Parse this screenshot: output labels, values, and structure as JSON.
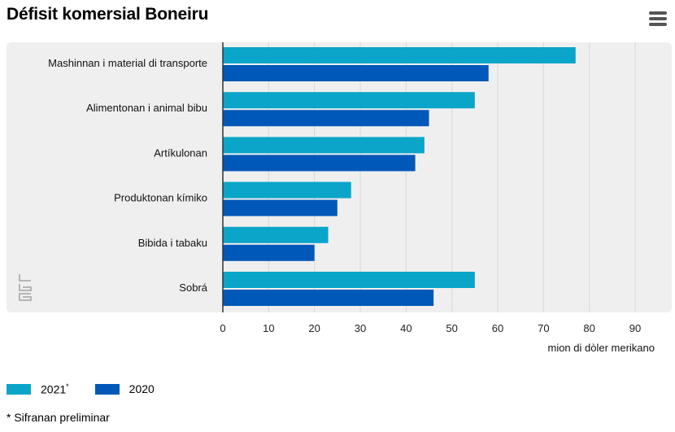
{
  "header": {
    "title": "Défisit komersial Boneiru",
    "menu_icon": "hamburger-menu-icon"
  },
  "colors": {
    "series_2021": "#0aa5c8",
    "series_2020": "#0058b8",
    "panel": "#efefef",
    "grid": "#d8d8d8",
    "axis": "#333333"
  },
  "chart_data": {
    "type": "bar",
    "orientation": "horizontal",
    "title": "Défisit komersial Boneiru",
    "categories": [
      "Mashinnan i material di transporte",
      "Alimentonan i animal bibu",
      "Artíkulonan",
      "Produktonan kímiko",
      "Bibida i tabaku",
      "Sobrá"
    ],
    "series": [
      {
        "name": "2021",
        "legend_marker": "*",
        "values": [
          77,
          55,
          44,
          28,
          23,
          55
        ]
      },
      {
        "name": "2020",
        "legend_marker": "",
        "values": [
          58,
          45,
          42,
          25,
          20,
          46
        ]
      }
    ],
    "xlabel": "mion di dòler merikano",
    "ylabel": "",
    "xlim": [
      0,
      90
    ],
    "xticks": [
      0,
      10,
      20,
      30,
      40,
      50,
      60,
      70,
      80,
      90
    ],
    "grid": true,
    "legend_position": "bottom-left"
  },
  "footnote": "* Sifranan preliminar",
  "logo": "cbs-logo"
}
